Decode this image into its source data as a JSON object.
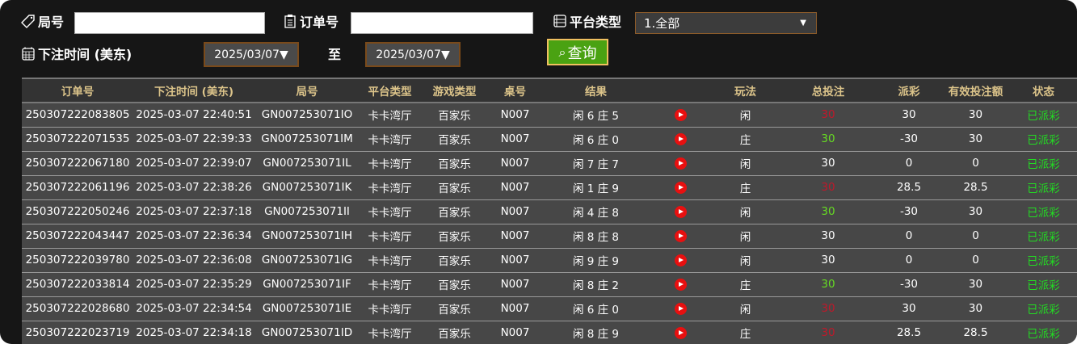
{
  "filters": {
    "round_label": "局号",
    "round_value": "",
    "order_label": "订单号",
    "order_value": "",
    "platform_label": "平台类型",
    "platform_selected": "1.全部",
    "time_label": "下注时间 (美东)",
    "date_from": "2025/03/07▼",
    "to_label": "至",
    "date_to": "2025/03/07▼",
    "query_label": "查询"
  },
  "table": {
    "headers": [
      "订单号",
      "下注时间 (美东)",
      "局号",
      "平台类型",
      "游戏类型",
      "桌号",
      "结果",
      "",
      "玩法",
      "总投注",
      "派彩",
      "有效投注额",
      "状态"
    ],
    "rows": [
      [
        "250307222083805",
        "2025-03-07 22:40:51",
        "GN007253071IO",
        "卡卡湾厅",
        "百家乐",
        "N007",
        "闲 6 庄 5",
        "闲",
        "30",
        "30",
        "30",
        "已派彩",
        "red"
      ],
      [
        "250307222071535",
        "2025-03-07 22:39:33",
        "GN007253071IM",
        "卡卡湾厅",
        "百家乐",
        "N007",
        "闲 6 庄 0",
        "庄",
        "30",
        "-30",
        "30",
        "已派彩",
        "grn"
      ],
      [
        "250307222067180",
        "2025-03-07 22:39:07",
        "GN007253071IL",
        "卡卡湾厅",
        "百家乐",
        "N007",
        "闲 7 庄 7",
        "闲",
        "30",
        "0",
        "0",
        "已派彩",
        ""
      ],
      [
        "250307222061196",
        "2025-03-07 22:38:26",
        "GN007253071IK",
        "卡卡湾厅",
        "百家乐",
        "N007",
        "闲 1 庄 9",
        "庄",
        "30",
        "28.5",
        "28.5",
        "已派彩",
        "red"
      ],
      [
        "250307222050246",
        "2025-03-07 22:37:18",
        "GN007253071II",
        "卡卡湾厅",
        "百家乐",
        "N007",
        "闲 4 庄 8",
        "闲",
        "30",
        "-30",
        "30",
        "已派彩",
        "grn"
      ],
      [
        "250307222043447",
        "2025-03-07 22:36:34",
        "GN007253071IH",
        "卡卡湾厅",
        "百家乐",
        "N007",
        "闲 8 庄 8",
        "闲",
        "30",
        "0",
        "0",
        "已派彩",
        ""
      ],
      [
        "250307222039780",
        "2025-03-07 22:36:08",
        "GN007253071IG",
        "卡卡湾厅",
        "百家乐",
        "N007",
        "闲 9 庄 9",
        "闲",
        "30",
        "0",
        "0",
        "已派彩",
        ""
      ],
      [
        "250307222033814",
        "2025-03-07 22:35:29",
        "GN007253071IF",
        "卡卡湾厅",
        "百家乐",
        "N007",
        "闲 8 庄 2",
        "庄",
        "30",
        "-30",
        "30",
        "已派彩",
        "grn"
      ],
      [
        "250307222028680",
        "2025-03-07 22:34:54",
        "GN007253071IE",
        "卡卡湾厅",
        "百家乐",
        "N007",
        "闲 6 庄 0",
        "闲",
        "30",
        "30",
        "30",
        "已派彩",
        "red"
      ],
      [
        "250307222023719",
        "2025-03-07 22:34:18",
        "GN007253071ID",
        "卡卡湾厅",
        "百家乐",
        "N007",
        "闲 8 庄 9",
        "庄",
        "30",
        "28.5",
        "28.5",
        "已派彩",
        "red"
      ]
    ]
  },
  "colors": {
    "win": "#c0182a",
    "loss": "#66dd22",
    "status": "#22dd22",
    "header_text": "#dcc48a"
  }
}
